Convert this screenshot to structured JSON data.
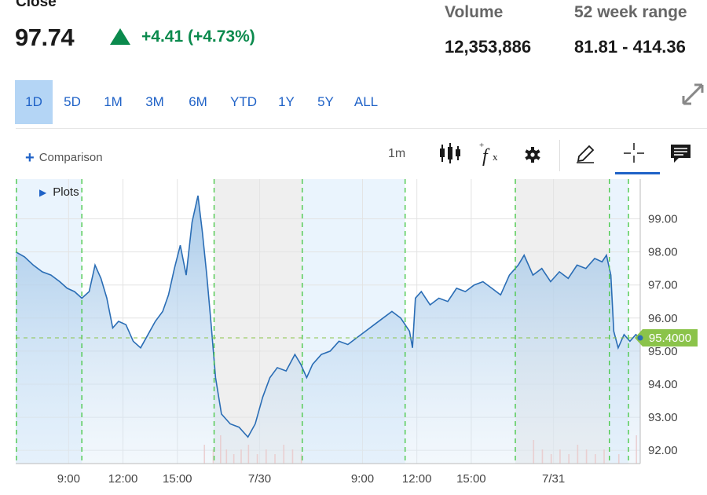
{
  "header": {
    "close_label": "Close",
    "price": "97.74",
    "change": "+4.41 (+4.73%)",
    "volume_label": "Volume",
    "volume_value": "12,353,886",
    "range_label": "52 week range",
    "range_value": "81.81 - 414.36",
    "change_icon": "triangle-up-icon",
    "up_color": "#0b8a4d"
  },
  "tabs": [
    {
      "label": "1D",
      "active": true
    },
    {
      "label": "5D",
      "active": false
    },
    {
      "label": "1M",
      "active": false
    },
    {
      "label": "3M",
      "active": false
    },
    {
      "label": "6M",
      "active": false
    },
    {
      "label": "YTD",
      "active": false
    },
    {
      "label": "1Y",
      "active": false
    },
    {
      "label": "5Y",
      "active": false
    },
    {
      "label": "ALL",
      "active": false
    }
  ],
  "toolbar": {
    "comparison_label": "Comparison",
    "interval": "1m",
    "icons": [
      "candlestick-icon",
      "function-icon",
      "gear-icon",
      "pencil-icon",
      "crosshair-icon",
      "comment-icon"
    ],
    "expand_icon": "expand-icon"
  },
  "plots_label": "Plots",
  "chart_data": {
    "type": "area",
    "ylim": [
      91.6,
      100.2
    ],
    "y_ticks": [
      "99.00",
      "98.00",
      "97.00",
      "96.00",
      "95.00",
      "94.00",
      "93.00",
      "92.00"
    ],
    "x_ticks": [
      "9:00",
      "12:00",
      "15:00",
      "7/30",
      "9:00",
      "12:00",
      "15:00",
      "7/31"
    ],
    "current_price_label": "95.4000",
    "current_price": 95.4,
    "line_color": "#2a6db5",
    "accent_color": "#8bc34a",
    "series": [
      {
        "values": [
          [
            0.0,
            98.0
          ],
          [
            0.6,
            97.85
          ],
          [
            1.2,
            97.6
          ],
          [
            1.8,
            97.4
          ],
          [
            2.4,
            97.3
          ],
          [
            3.0,
            97.1
          ],
          [
            3.5,
            96.9
          ],
          [
            4.0,
            96.8
          ],
          [
            4.5,
            96.6
          ],
          [
            5.0,
            96.8
          ],
          [
            5.4,
            97.6
          ],
          [
            5.8,
            97.2
          ],
          [
            6.2,
            96.6
          ],
          [
            6.6,
            95.7
          ],
          [
            7.0,
            95.9
          ],
          [
            7.5,
            95.8
          ],
          [
            8.0,
            95.3
          ],
          [
            8.5,
            95.1
          ],
          [
            9.0,
            95.5
          ],
          [
            9.5,
            95.9
          ],
          [
            10.0,
            96.2
          ],
          [
            10.4,
            96.7
          ],
          [
            10.8,
            97.5
          ],
          [
            11.2,
            98.2
          ],
          [
            11.6,
            97.3
          ],
          [
            12.0,
            98.9
          ],
          [
            12.4,
            99.7
          ],
          [
            12.7,
            98.6
          ],
          [
            13.0,
            97.3
          ],
          [
            13.3,
            95.8
          ],
          [
            13.6,
            94.2
          ],
          [
            14.0,
            93.1
          ],
          [
            14.6,
            92.8
          ],
          [
            15.2,
            92.7
          ],
          [
            15.8,
            92.4
          ],
          [
            16.3,
            92.8
          ],
          [
            16.8,
            93.6
          ],
          [
            17.3,
            94.2
          ],
          [
            17.8,
            94.5
          ],
          [
            18.4,
            94.4
          ],
          [
            19.0,
            94.9
          ],
          [
            19.4,
            94.6
          ],
          [
            19.8,
            94.2
          ],
          [
            20.2,
            94.6
          ],
          [
            20.8,
            94.9
          ],
          [
            21.4,
            95.0
          ],
          [
            22.0,
            95.3
          ],
          [
            22.6,
            95.2
          ],
          [
            23.2,
            95.4
          ],
          [
            23.8,
            95.6
          ],
          [
            24.4,
            95.8
          ],
          [
            25.0,
            96.0
          ],
          [
            25.6,
            96.2
          ],
          [
            26.2,
            96.0
          ],
          [
            26.8,
            95.6
          ],
          [
            27.0,
            95.1
          ],
          [
            27.2,
            96.6
          ],
          [
            27.6,
            96.8
          ],
          [
            28.2,
            96.4
          ],
          [
            28.8,
            96.6
          ],
          [
            29.4,
            96.5
          ],
          [
            30.0,
            96.9
          ],
          [
            30.6,
            96.8
          ],
          [
            31.2,
            97.0
          ],
          [
            31.8,
            97.1
          ],
          [
            32.4,
            96.9
          ],
          [
            33.0,
            96.7
          ],
          [
            33.6,
            97.3
          ],
          [
            34.2,
            97.6
          ],
          [
            34.6,
            97.9
          ],
          [
            35.2,
            97.3
          ],
          [
            35.8,
            97.5
          ],
          [
            36.4,
            97.1
          ],
          [
            37.0,
            97.4
          ],
          [
            37.6,
            97.2
          ],
          [
            38.2,
            97.6
          ],
          [
            38.8,
            97.5
          ],
          [
            39.4,
            97.8
          ],
          [
            39.9,
            97.7
          ],
          [
            40.2,
            97.9
          ],
          [
            40.5,
            97.3
          ],
          [
            40.7,
            95.6
          ],
          [
            41.0,
            95.1
          ],
          [
            41.4,
            95.5
          ],
          [
            41.8,
            95.3
          ],
          [
            42.2,
            95.5
          ],
          [
            42.5,
            95.4
          ]
        ]
      }
    ],
    "volume": [
      [
        12.8,
        0.4
      ],
      [
        13.4,
        0.3
      ],
      [
        13.9,
        0.6
      ],
      [
        14.3,
        0.3
      ],
      [
        14.8,
        0.2
      ],
      [
        15.3,
        0.3
      ],
      [
        15.8,
        0.4
      ],
      [
        16.4,
        0.2
      ],
      [
        17.0,
        0.3
      ],
      [
        17.6,
        0.2
      ],
      [
        18.2,
        0.4
      ],
      [
        18.8,
        0.3
      ],
      [
        19.4,
        0.2
      ],
      [
        35.2,
        0.5
      ],
      [
        35.8,
        0.3
      ],
      [
        36.4,
        0.2
      ],
      [
        37.0,
        0.3
      ],
      [
        37.6,
        0.2
      ],
      [
        38.2,
        0.4
      ],
      [
        38.8,
        0.3
      ],
      [
        39.4,
        0.2
      ],
      [
        40.0,
        0.3
      ],
      [
        41.0,
        0.2
      ],
      [
        42.2,
        0.6
      ]
    ]
  }
}
